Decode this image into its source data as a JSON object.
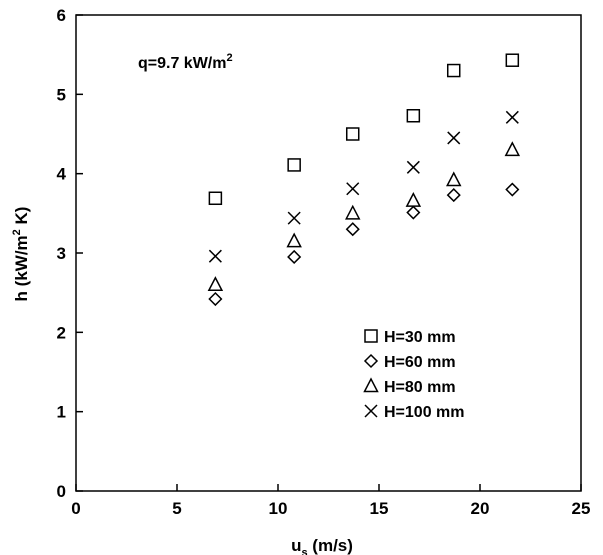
{
  "chart_data": {
    "type": "scatter",
    "annotation": {
      "text": "q=9.7 kW/m",
      "sup": "2"
    },
    "xlabel": {
      "main": "u",
      "sub": "s",
      "rest": " (m/s)"
    },
    "ylabel": {
      "pre": "h (kW/m",
      "sup": "2",
      "post": " K)"
    },
    "xlim": [
      0,
      25
    ],
    "ylim": [
      0,
      6
    ],
    "xticks": [
      0,
      5,
      10,
      15,
      20,
      25
    ],
    "yticks": [
      0,
      1,
      2,
      3,
      4,
      5,
      6
    ],
    "grid": false,
    "legend_position": "bottom-right",
    "x": [
      6.9,
      10.8,
      13.7,
      16.7,
      18.7,
      21.6
    ],
    "series": [
      {
        "name": "H=30 mm",
        "marker": "square",
        "values": [
          3.69,
          4.11,
          4.5,
          4.73,
          5.3,
          5.43
        ]
      },
      {
        "name": "H=60 mm",
        "marker": "diamond",
        "values": [
          2.42,
          2.95,
          3.3,
          3.51,
          3.73,
          3.8
        ]
      },
      {
        "name": "H=80 mm",
        "marker": "triangle",
        "values": [
          2.6,
          3.15,
          3.5,
          3.66,
          3.92,
          4.3
        ]
      },
      {
        "name": "H=100 mm",
        "marker": "x",
        "values": [
          2.96,
          3.44,
          3.81,
          4.08,
          4.45,
          4.71
        ]
      }
    ]
  }
}
